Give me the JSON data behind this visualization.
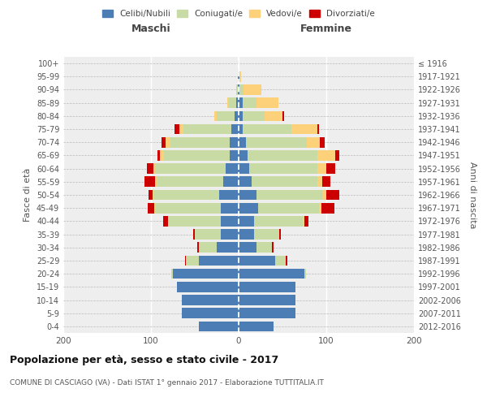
{
  "age_groups": [
    "0-4",
    "5-9",
    "10-14",
    "15-19",
    "20-24",
    "25-29",
    "30-34",
    "35-39",
    "40-44",
    "45-49",
    "50-54",
    "55-59",
    "60-64",
    "65-69",
    "70-74",
    "75-79",
    "80-84",
    "85-89",
    "90-94",
    "95-99",
    "100+"
  ],
  "birth_years": [
    "2012-2016",
    "2007-2011",
    "2002-2006",
    "1997-2001",
    "1992-1996",
    "1987-1991",
    "1982-1986",
    "1977-1981",
    "1972-1976",
    "1967-1971",
    "1962-1966",
    "1957-1961",
    "1952-1956",
    "1947-1951",
    "1942-1946",
    "1937-1941",
    "1932-1936",
    "1927-1931",
    "1922-1926",
    "1917-1921",
    "≤ 1916"
  ],
  "maschi": {
    "celibi": [
      45,
      65,
      65,
      70,
      75,
      45,
      25,
      20,
      20,
      20,
      22,
      18,
      15,
      10,
      10,
      8,
      5,
      3,
      1,
      1,
      0
    ],
    "coniugati": [
      0,
      0,
      0,
      0,
      2,
      15,
      20,
      30,
      60,
      75,
      75,
      75,
      80,
      75,
      68,
      55,
      20,
      8,
      2,
      0,
      0
    ],
    "vedovi": [
      0,
      0,
      0,
      0,
      0,
      0,
      0,
      0,
      1,
      1,
      1,
      2,
      2,
      5,
      5,
      5,
      3,
      2,
      0,
      0,
      0
    ],
    "divorziati": [
      0,
      0,
      0,
      0,
      0,
      1,
      2,
      2,
      5,
      8,
      5,
      12,
      8,
      3,
      5,
      5,
      0,
      0,
      0,
      0,
      0
    ]
  },
  "femmine": {
    "nubili": [
      40,
      65,
      65,
      65,
      75,
      42,
      20,
      18,
      18,
      22,
      20,
      15,
      12,
      10,
      8,
      5,
      5,
      5,
      1,
      1,
      0
    ],
    "coniugate": [
      0,
      0,
      0,
      0,
      2,
      12,
      18,
      28,
      55,
      70,
      75,
      75,
      78,
      80,
      70,
      55,
      25,
      15,
      5,
      0,
      0
    ],
    "vedove": [
      0,
      0,
      0,
      0,
      0,
      0,
      0,
      0,
      2,
      2,
      5,
      5,
      10,
      20,
      15,
      30,
      20,
      25,
      20,
      2,
      0
    ],
    "divorziate": [
      0,
      0,
      0,
      0,
      0,
      2,
      2,
      2,
      5,
      15,
      15,
      10,
      10,
      5,
      5,
      2,
      2,
      0,
      0,
      0,
      0
    ]
  },
  "colors": {
    "celibi": "#4d7db5",
    "coniugati": "#c8dba4",
    "vedovi": "#fdd07a",
    "divorziati": "#cc0000"
  },
  "xlim": [
    -200,
    200
  ],
  "title": "Popolazione per età, sesso e stato civile - 2017",
  "subtitle": "COMUNE DI CASCIAGO (VA) - Dati ISTAT 1° gennaio 2017 - Elaborazione TUTTITALIA.IT",
  "ylabel_left": "Fasce di età",
  "ylabel_right": "Anni di nascita",
  "xlabel_maschi": "Maschi",
  "xlabel_femmine": "Femmine",
  "legend_labels": [
    "Celibi/Nubili",
    "Coniugati/e",
    "Vedovi/e",
    "Divorziati/e"
  ],
  "bg_color": "#eeeeee"
}
